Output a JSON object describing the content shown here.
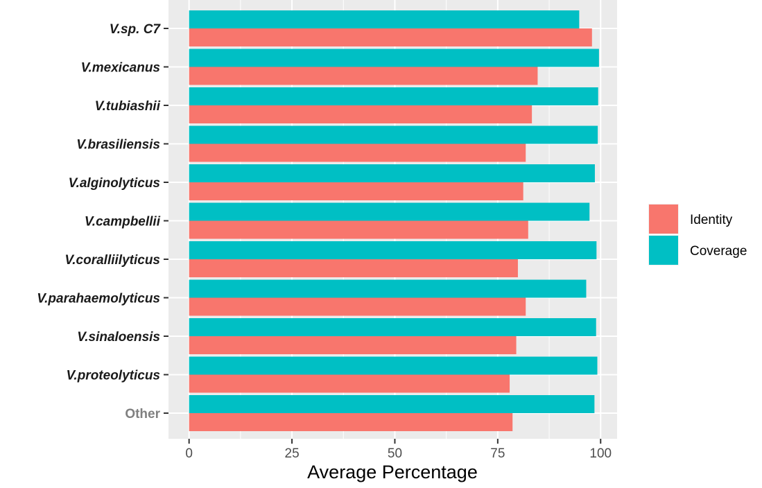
{
  "chart_data": {
    "type": "bar",
    "orientation": "horizontal",
    "title": "",
    "xlabel": "Average Percentage",
    "ylabel": "",
    "xlim": [
      -5,
      104
    ],
    "x_ticks": [
      0,
      25,
      50,
      75,
      100
    ],
    "grid": true,
    "legend_position": "right",
    "categories": [
      "V.sp. C7",
      "V.mexicanus",
      "V.tubiashii",
      "V.brasiliensis",
      "V.alginolyticus",
      "V.campbellii",
      "V.coralliilyticus",
      "V.parahaemolyticus",
      "V.sinaloensis",
      "V.proteolyticus",
      "Other"
    ],
    "category_label_colors": [
      "#1a1a1a",
      "#1a1a1a",
      "#1a1a1a",
      "#1a1a1a",
      "#1a1a1a",
      "#1a1a1a",
      "#1a1a1a",
      "#1a1a1a",
      "#1a1a1a",
      "#1a1a1a",
      "#808080"
    ],
    "series": [
      {
        "name": "Coverage",
        "color": "#00BFC4",
        "values": [
          94.8,
          99.6,
          99.4,
          99.3,
          98.6,
          97.3,
          99.0,
          96.5,
          98.9,
          99.2,
          98.5
        ]
      },
      {
        "name": "Identity",
        "color": "#F8766D",
        "values": [
          97.9,
          84.7,
          83.3,
          81.8,
          81.2,
          82.4,
          79.9,
          81.8,
          79.5,
          77.9,
          78.6
        ]
      }
    ],
    "legend": [
      {
        "label": "Identity",
        "color": "#F8766D"
      },
      {
        "label": "Coverage",
        "color": "#00BFC4"
      }
    ]
  }
}
